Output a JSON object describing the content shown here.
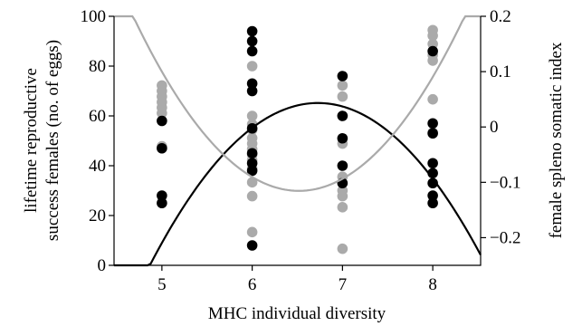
{
  "chart_data": {
    "type": "scatter",
    "xlabel": "MHC individual diversity",
    "ylabel_left": "lifetime reproductive success females (no. of eggs)",
    "ylabel_left_lines": [
      "lifetime reproductive",
      "success females (no. of eggs)"
    ],
    "ylabel_right": "female spleno somatic index",
    "xlim": [
      4.47,
      8.53
    ],
    "ylim_left": [
      0,
      100
    ],
    "ylim_right": [
      -0.25,
      0.2
    ],
    "x_ticks": [
      5,
      6,
      7,
      8
    ],
    "y_left_ticks": [
      0,
      20,
      40,
      60,
      80,
      100
    ],
    "y_right_ticks": [
      -0.2,
      -0.1,
      0,
      0.1,
      0.2
    ],
    "y_right_tick_labels": [
      "−0.2",
      "−0.1",
      "0",
      "0.1",
      "0.2"
    ],
    "grid": false,
    "legend": "none",
    "series": [
      {
        "color": "#000000",
        "axis": "left",
        "points": [
          [
            5,
            58
          ],
          [
            5,
            47
          ],
          [
            5,
            28
          ],
          [
            5,
            25
          ],
          [
            6,
            94
          ],
          [
            6,
            90
          ],
          [
            6,
            86
          ],
          [
            6,
            73
          ],
          [
            6,
            70
          ],
          [
            6,
            55
          ],
          [
            6,
            45
          ],
          [
            6,
            41
          ],
          [
            6,
            38
          ],
          [
            6,
            8
          ],
          [
            7,
            76
          ],
          [
            7,
            60
          ],
          [
            7,
            51
          ],
          [
            7,
            40
          ],
          [
            7,
            33
          ],
          [
            8,
            86
          ],
          [
            8,
            57
          ],
          [
            8,
            53
          ],
          [
            8,
            41
          ],
          [
            8,
            37
          ],
          [
            8,
            33
          ],
          [
            8,
            28
          ],
          [
            8,
            25
          ]
        ]
      },
      {
        "color": "#aaaaaa",
        "axis": "right",
        "points": [
          [
            5,
            0.075
          ],
          [
            5,
            0.065
          ],
          [
            5,
            0.055
          ],
          [
            5,
            0.045
          ],
          [
            5,
            0.035
          ],
          [
            5,
            0.025
          ],
          [
            5,
            -0.035
          ],
          [
            6,
            0.11
          ],
          [
            6,
            0.02
          ],
          [
            6,
            0.005
          ],
          [
            6,
            -0.005
          ],
          [
            6,
            -0.02
          ],
          [
            6,
            -0.03
          ],
          [
            6,
            -0.04
          ],
          [
            6,
            -0.05
          ],
          [
            6,
            -0.06
          ],
          [
            6,
            -0.075
          ],
          [
            6,
            -0.1
          ],
          [
            6,
            -0.125
          ],
          [
            6,
            -0.19
          ],
          [
            7,
            0.075
          ],
          [
            7,
            0.055
          ],
          [
            7,
            0.02
          ],
          [
            7,
            -0.03
          ],
          [
            7,
            -0.09
          ],
          [
            7,
            -0.115
          ],
          [
            7,
            -0.125
          ],
          [
            7,
            -0.145
          ],
          [
            7,
            -0.22
          ],
          [
            8,
            0.175
          ],
          [
            8,
            0.165
          ],
          [
            8,
            0.15
          ],
          [
            8,
            0.13
          ],
          [
            8,
            0.12
          ],
          [
            8,
            0.05
          ],
          [
            8,
            -0.01
          ]
        ]
      }
    ],
    "fits": [
      {
        "color": "#000000",
        "axis": "left",
        "quadratic": [
          -18.8,
          253,
          -786
        ]
      },
      {
        "color": "#aaaaaa",
        "axis": "right",
        "quadratic": [
          0.0936,
          -1.22,
          3.86
        ]
      }
    ]
  }
}
